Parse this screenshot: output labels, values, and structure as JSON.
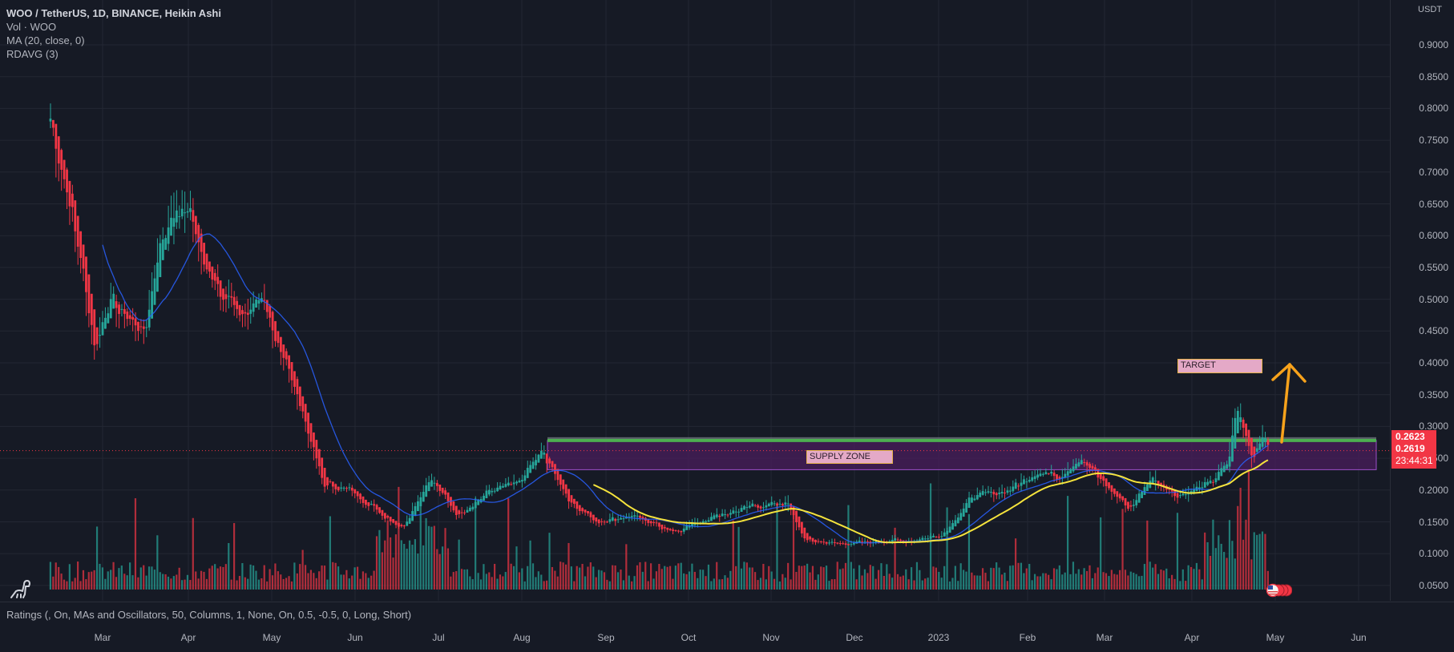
{
  "legend": {
    "title": "WOO / TetherUS, 1D, BINANCE, Heikin Ashi",
    "lines": [
      "Vol · WOO",
      "MA (20, close, 0)",
      "RDAVG (3)"
    ]
  },
  "ratings_label": "Ratings (, On, MAs and Oscillators, 50, Columns, 1, None, On, 0.5, -0.5, 0, Long, Short)",
  "price_axis": {
    "unit": "USDT",
    "ticks": [
      "0.9000",
      "0.8500",
      "0.8000",
      "0.7500",
      "0.7000",
      "0.6500",
      "0.6000",
      "0.5500",
      "0.5000",
      "0.4500",
      "0.4000",
      "0.3500",
      "0.3000",
      "0.2500",
      "0.2000",
      "0.1500",
      "0.1000",
      "0.0500"
    ],
    "last_price": "0.2623",
    "current_price": "0.2619",
    "countdown": "23:44:31"
  },
  "time_axis": {
    "labels": [
      "Mar",
      "Apr",
      "May",
      "Jun",
      "Jul",
      "Aug",
      "Sep",
      "Oct",
      "Nov",
      "Dec",
      "2023",
      "Feb",
      "Mar",
      "Apr",
      "May",
      "Jun"
    ]
  },
  "annotations": {
    "supply_zone_label": "SUPPLY ZONE",
    "target_label": "TARGET"
  },
  "colors": {
    "background": "#161a25",
    "grid": "#232733",
    "up": "#26a69a",
    "down": "#f23645",
    "ma": "#2962ff",
    "rdavg": "#f5e33c",
    "zone_fill": "#4a1d5c",
    "zone_border": "#9c4fc9",
    "zone_top": "#4caf50",
    "arrow": "#f7a21b",
    "price_tag": "#f23645"
  },
  "chart_data": {
    "type": "candlestick",
    "title": "WOO / TetherUS, 1D, BINANCE, Heikin Ashi",
    "xlabel": "",
    "ylabel": "USDT",
    "ylim": [
      0.02,
      0.93
    ],
    "x_range": [
      "2022-02",
      "2023-06"
    ],
    "price_path": [
      {
        "date": "2022-02-10",
        "close": 0.78
      },
      {
        "date": "2022-02-14",
        "close": 0.7
      },
      {
        "date": "2022-02-20",
        "close": 0.58
      },
      {
        "date": "2022-02-26",
        "close": 0.42
      },
      {
        "date": "2022-03-03",
        "close": 0.5
      },
      {
        "date": "2022-03-10",
        "close": 0.47
      },
      {
        "date": "2022-03-16",
        "close": 0.45
      },
      {
        "date": "2022-03-22",
        "close": 0.6
      },
      {
        "date": "2022-03-29",
        "close": 0.64
      },
      {
        "date": "2022-04-02",
        "close": 0.63
      },
      {
        "date": "2022-04-10",
        "close": 0.52
      },
      {
        "date": "2022-04-20",
        "close": 0.48
      },
      {
        "date": "2022-04-28",
        "close": 0.49
      },
      {
        "date": "2022-05-05",
        "close": 0.42
      },
      {
        "date": "2022-05-12",
        "close": 0.33
      },
      {
        "date": "2022-05-20",
        "close": 0.21
      },
      {
        "date": "2022-05-30",
        "close": 0.2
      },
      {
        "date": "2022-06-08",
        "close": 0.17
      },
      {
        "date": "2022-06-18",
        "close": 0.14
      },
      {
        "date": "2022-06-28",
        "close": 0.22
      },
      {
        "date": "2022-07-08",
        "close": 0.16
      },
      {
        "date": "2022-07-20",
        "close": 0.2
      },
      {
        "date": "2022-07-30",
        "close": 0.21
      },
      {
        "date": "2022-08-08",
        "close": 0.26
      },
      {
        "date": "2022-08-18",
        "close": 0.18
      },
      {
        "date": "2022-08-28",
        "close": 0.15
      },
      {
        "date": "2022-09-10",
        "close": 0.16
      },
      {
        "date": "2022-09-25",
        "close": 0.135
      },
      {
        "date": "2022-10-10",
        "close": 0.16
      },
      {
        "date": "2022-10-25",
        "close": 0.175
      },
      {
        "date": "2022-11-05",
        "close": 0.18
      },
      {
        "date": "2022-11-12",
        "close": 0.12
      },
      {
        "date": "2022-11-25",
        "close": 0.115
      },
      {
        "date": "2022-12-10",
        "close": 0.12
      },
      {
        "date": "2022-12-20",
        "close": 0.12
      },
      {
        "date": "2023-01-01",
        "close": 0.13
      },
      {
        "date": "2023-01-12",
        "close": 0.19
      },
      {
        "date": "2023-01-25",
        "close": 0.2
      },
      {
        "date": "2023-02-05",
        "close": 0.23
      },
      {
        "date": "2023-02-12",
        "close": 0.22
      },
      {
        "date": "2023-02-20",
        "close": 0.25
      },
      {
        "date": "2023-03-01",
        "close": 0.21
      },
      {
        "date": "2023-03-10",
        "close": 0.17
      },
      {
        "date": "2023-03-18",
        "close": 0.22
      },
      {
        "date": "2023-03-28",
        "close": 0.19
      },
      {
        "date": "2023-04-08",
        "close": 0.21
      },
      {
        "date": "2023-04-15",
        "close": 0.24
      },
      {
        "date": "2023-04-18",
        "close": 0.33
      },
      {
        "date": "2023-04-24",
        "close": 0.25
      },
      {
        "date": "2023-04-28",
        "close": 0.29
      },
      {
        "date": "2023-05-01",
        "close": 0.2619
      }
    ],
    "supply_zone": {
      "top": 0.278,
      "bottom": 0.232,
      "label": "SUPPLY ZONE"
    },
    "target": {
      "label": "TARGET",
      "price": 0.4
    },
    "last_price": 0.2623,
    "current_price": 0.2619,
    "volume_pane": {
      "ylim": [
        0,
        1
      ],
      "note": "volume bars colored by candle direction"
    }
  }
}
